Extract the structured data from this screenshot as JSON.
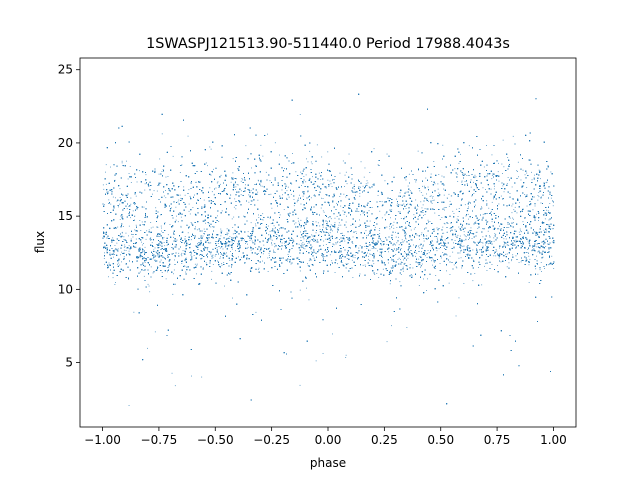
{
  "chart_data": {
    "type": "scatter",
    "title": "1SWASPJ121513.90-511440.0 Period 17988.4043s",
    "xlabel": "phase",
    "ylabel": "flux",
    "xlim": [
      -1.1,
      1.1
    ],
    "ylim": [
      0.6,
      25.8
    ],
    "xticks": [
      -1.0,
      -0.75,
      -0.5,
      -0.25,
      0.0,
      0.25,
      0.5,
      0.75,
      1.0
    ],
    "xtick_labels": [
      "−1.00",
      "−0.75",
      "−0.50",
      "−0.25",
      "0.00",
      "0.25",
      "0.50",
      "0.75",
      "1.00"
    ],
    "yticks": [
      5,
      10,
      15,
      20,
      25
    ],
    "ytick_labels": [
      "5",
      "10",
      "15",
      "20",
      "25"
    ],
    "grid": false,
    "marker_color": "#1f77b4",
    "series": [
      {
        "phase_range": [
          -1.0,
          1.0
        ],
        "flux_range": [
          2.0,
          24.5
        ],
        "profile": [
          {
            "x": -1.0,
            "y": 12.8
          },
          {
            "x": -0.75,
            "y": 12.6
          },
          {
            "x": -0.5,
            "y": 12.9
          },
          {
            "x": -0.25,
            "y": 13.3
          },
          {
            "x": 0.0,
            "y": 13.1
          },
          {
            "x": 0.25,
            "y": 12.6
          },
          {
            "x": 0.5,
            "y": 12.9
          },
          {
            "x": 0.75,
            "y": 13.3
          },
          {
            "x": 1.0,
            "y": 13.1
          }
        ]
      }
    ]
  }
}
